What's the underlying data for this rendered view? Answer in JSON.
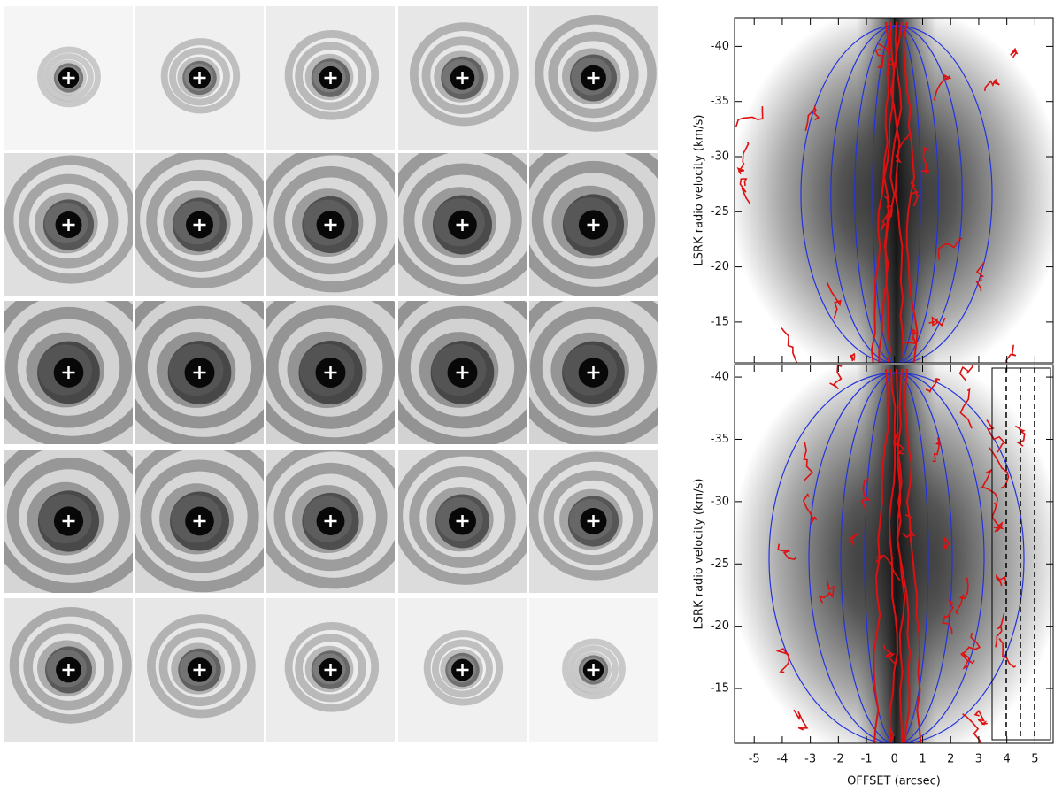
{
  "chart_data": [
    {
      "type": "pv-diagram",
      "ylabel": "LSRK radio velocity  (km/s)",
      "xlim": [
        -5.7,
        5.65
      ],
      "xticks": [
        -5,
        -4,
        -3,
        -2,
        -1,
        0,
        1,
        2,
        3,
        4,
        5
      ],
      "ylim": [
        -11.3,
        -42.6
      ],
      "yticks": [
        -40,
        -35,
        -30,
        -25,
        -20,
        -15
      ]
    },
    {
      "type": "pv-diagram",
      "ylabel": "LSRK radio velocity  (km/s)",
      "xlabel": "OFFSET (arcsec)",
      "xlim": [
        -5.7,
        5.65
      ],
      "xticks": [
        -5,
        -4,
        -3,
        -2,
        -1,
        0,
        1,
        2,
        3,
        4,
        5
      ],
      "ylim": [
        -10.6,
        -41.0
      ],
      "yticks": [
        -40,
        -35,
        -30,
        -25,
        -20,
        -15
      ]
    }
  ]
}
